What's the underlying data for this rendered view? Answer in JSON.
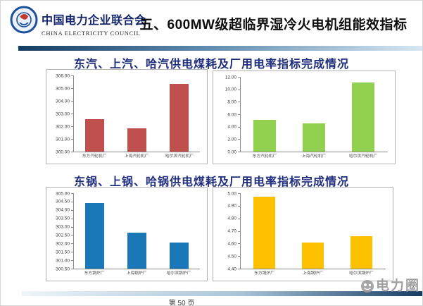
{
  "header": {
    "org_name_cn": "中国电力企业联合会",
    "org_name_en": "CHINA ELECTRICITY COUNCIL",
    "slide_title": "五、600MW级超临界湿冷火电机组能效指标"
  },
  "section_titles": {
    "turbine": "东汽、上汽、哈汽供电煤耗及厂用电率指标完成情况",
    "boiler": "东锅、上锅、哈锅供电煤耗及厂用电率指标完成情况"
  },
  "footer": {
    "page_label": "第 50 页",
    "watermark_label": "电力圈"
  },
  "colors": {
    "title_navy": "#1f2d7d",
    "divider_dark": "#143d63",
    "divider_light": "#d8e7f3",
    "bar_red": "#c0504d",
    "bar_green": "#92d050",
    "bar_blue": "#1a78b8",
    "bar_yellow": "#fdc100"
  },
  "chart_data": [
    {
      "type": "bar",
      "section": "东汽、上汽、哈汽供电煤耗及厂用电率指标完成情况",
      "metric": "供电煤耗",
      "categories": [
        "东方汽轮机厂",
        "上海汽轮机厂",
        "哈尔滨汽轮机厂"
      ],
      "values": [
        302.55,
        301.85,
        305.35
      ],
      "ylim": [
        300.0,
        306.0
      ],
      "yticks": [
        "306.00",
        "305.00",
        "304.00",
        "303.00",
        "302.00",
        "301.00",
        "300.00"
      ],
      "grid": false,
      "legend": "none",
      "color": "#c0504d"
    },
    {
      "type": "bar",
      "section": "东汽、上汽、哈汽供电煤耗及厂用电率指标完成情况",
      "metric": "厂用电率",
      "categories": [
        "东方汽轮机厂",
        "上海汽轮机厂",
        "哈尔滨汽轮机厂"
      ],
      "values": [
        5.05,
        4.55,
        11.05
      ],
      "ylim": [
        0.0,
        12.0
      ],
      "yticks": [
        "12.00",
        "10.00",
        "8.00",
        "6.00",
        "4.00",
        "2.00",
        "0.00"
      ],
      "grid": false,
      "legend": "none",
      "color": "#92d050"
    },
    {
      "type": "bar",
      "section": "东锅、上锅、哈锅供电煤耗及厂用电率指标完成情况",
      "metric": "供电煤耗",
      "categories": [
        "东方锅炉厂",
        "上海锅炉厂",
        "哈尔滨锅炉厂"
      ],
      "values": [
        304.4,
        302.65,
        302.05
      ],
      "ylim": [
        300.5,
        305.0
      ],
      "yticks": [
        "305.00",
        "304.50",
        "304.00",
        "303.50",
        "303.00",
        "302.50",
        "302.00",
        "301.50",
        "301.00",
        "300.50"
      ],
      "grid": false,
      "legend": "none",
      "color": "#1a78b8"
    },
    {
      "type": "bar",
      "section": "东锅、上锅、哈锅供电煤耗及厂用电率指标完成情况",
      "metric": "厂用电率",
      "categories": [
        "东方锅炉厂",
        "上海锅炉厂",
        "哈尔滨锅炉厂"
      ],
      "values": [
        4.97,
        4.61,
        4.66
      ],
      "ylim": [
        4.4,
        5.0
      ],
      "yticks": [
        "5.00",
        "4.90",
        "4.80",
        "4.70",
        "4.60",
        "4.50",
        "4.40"
      ],
      "grid": false,
      "legend": "none",
      "color": "#fdc100"
    }
  ]
}
